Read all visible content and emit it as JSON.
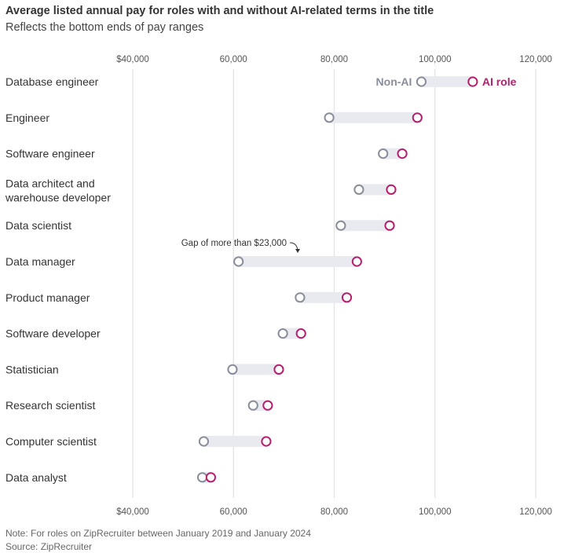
{
  "header": {
    "title": "Average listed annual pay for roles with and without AI-related terms in the title",
    "subtitle": "Reflects the bottom ends of pay ranges"
  },
  "footer": {
    "note": "Note: For roles on ZipRecruiter between January 2019 and January 2024",
    "source": "Source: ZipRecruiter"
  },
  "colors": {
    "non_ai": "#8a8d9a",
    "ai": "#b5206e",
    "range_bar": "#e8eaf0",
    "gridline": "#e3e3e3"
  },
  "chart_data": {
    "type": "dumbbell",
    "title": "Average listed annual pay for roles with and without AI-related terms in the title",
    "subtitle": "Reflects the bottom ends of pay ranges",
    "xlim": [
      40000,
      120000
    ],
    "ticks": [
      40000,
      60000,
      80000,
      100000,
      120000
    ],
    "tick_labels": [
      "$40,000",
      "60,000",
      "80,000",
      "100,000",
      "120,000"
    ],
    "grid": true,
    "legend": {
      "non_ai": "Non-AI",
      "ai": "AI role"
    },
    "categories": [
      [
        "Database engineer"
      ],
      [
        "Engineer"
      ],
      [
        "Software engineer"
      ],
      [
        "Data architect and",
        "warehouse developer"
      ],
      [
        "Data scientist"
      ],
      [
        "Data manager"
      ],
      [
        "Product manager"
      ],
      [
        "Software developer"
      ],
      [
        "Statistician"
      ],
      [
        "Research scientist"
      ],
      [
        "Computer scientist"
      ],
      [
        "Data analyst"
      ]
    ],
    "series": [
      {
        "name": "Non-AI",
        "values": [
          97300,
          79000,
          89700,
          84900,
          81300,
          61000,
          73200,
          69800,
          59800,
          63900,
          54100,
          53800
        ]
      },
      {
        "name": "AI role",
        "values": [
          107500,
          96500,
          93500,
          91300,
          91000,
          84500,
          82500,
          73400,
          69000,
          66800,
          66500,
          55500
        ]
      }
    ],
    "annotation": {
      "text": "Gap of more than $23,000",
      "category_index": 5
    }
  }
}
